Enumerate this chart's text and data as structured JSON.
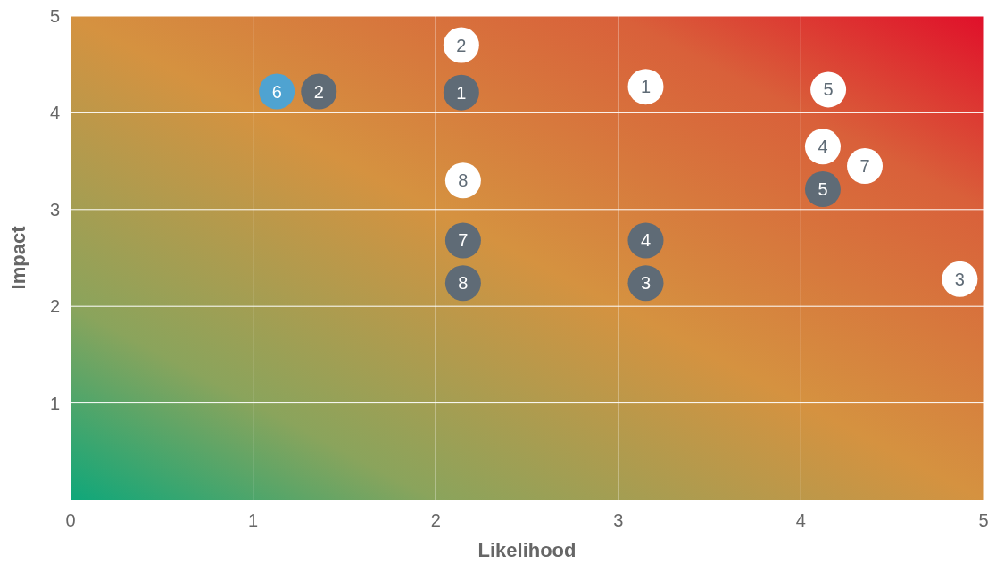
{
  "chart_data": {
    "type": "scatter",
    "xlabel": "Likelihood",
    "ylabel": "Impact",
    "xlim": [
      0,
      5
    ],
    "ylim": [
      0,
      5
    ],
    "xticks": [
      0,
      1,
      2,
      3,
      4,
      5
    ],
    "yticks": [
      1,
      2,
      3,
      4,
      5
    ],
    "grid": true,
    "marker": "circle",
    "series": [
      {
        "color": "#5f6b76",
        "x": [
          1.36,
          2.14,
          4.12,
          2.15,
          3.15,
          2.15,
          3.15
        ],
        "values": [
          4.22,
          4.21,
          3.21,
          2.68,
          2.68,
          2.24,
          2.24
        ]
      },
      {
        "color": "#4fa3d1",
        "x": [
          1.13
        ],
        "values": [
          4.22
        ]
      },
      {
        "color": "#ffffff",
        "x": [
          2.14,
          3.15,
          4.15,
          4.12,
          4.35,
          2.15,
          4.87
        ],
        "values": [
          4.7,
          4.27,
          4.24,
          3.65,
          3.45,
          3.3,
          2.28
        ]
      }
    ],
    "annotations": [
      {
        "text": "2",
        "x": 1.36,
        "y": 4.22
      },
      {
        "text": "1",
        "x": 2.14,
        "y": 4.21
      },
      {
        "text": "5",
        "x": 4.12,
        "y": 3.21
      },
      {
        "text": "7",
        "x": 2.15,
        "y": 2.68
      },
      {
        "text": "4",
        "x": 3.15,
        "y": 2.68
      },
      {
        "text": "8",
        "x": 2.15,
        "y": 2.24
      },
      {
        "text": "3",
        "x": 3.15,
        "y": 2.24
      },
      {
        "text": "6",
        "x": 1.13,
        "y": 4.22
      },
      {
        "text": "2",
        "x": 2.14,
        "y": 4.7
      },
      {
        "text": "1",
        "x": 3.15,
        "y": 4.27
      },
      {
        "text": "5",
        "x": 4.15,
        "y": 4.24
      },
      {
        "text": "4",
        "x": 4.12,
        "y": 3.65
      },
      {
        "text": "7",
        "x": 4.35,
        "y": 3.45
      },
      {
        "text": "8",
        "x": 2.15,
        "y": 3.3
      },
      {
        "text": "3",
        "x": 4.87,
        "y": 2.28
      }
    ]
  }
}
